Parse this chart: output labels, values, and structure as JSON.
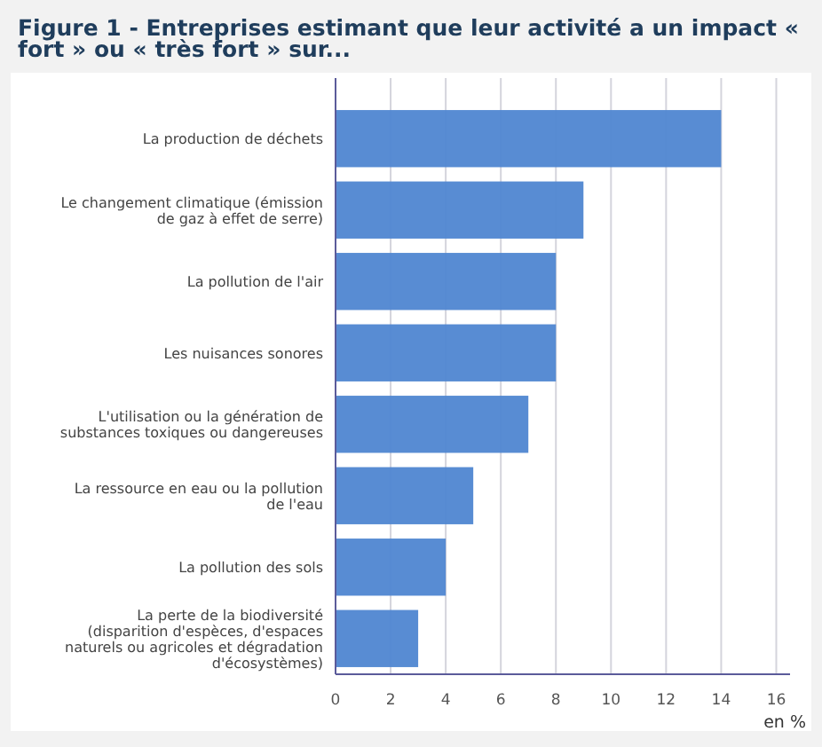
{
  "chart_data": {
    "type": "bar",
    "orientation": "horizontal",
    "title": "Figure 1 - Entreprises estimant que leur activité a un impact « fort » ou « très fort » sur...",
    "xlabel": "en %",
    "categories": [
      "La production de déchets",
      "Le changement climatique (émission de gaz à effet de serre)",
      "La pollution de l'air",
      "Les nuisances sonores",
      "L'utilisation ou la génération de substances toxiques ou dangereuses",
      "La ressource en eau ou la pollution de l'eau",
      "La pollution des sols",
      "La perte de la biodiversité (disparition d'espèces, d'espaces naturels ou agricoles et dégradation d'écosystèmes)"
    ],
    "values": [
      14,
      9,
      8,
      8,
      7,
      5,
      4,
      3
    ],
    "color": "#4f86d1",
    "xlim": [
      0,
      16.5
    ],
    "xticks": [
      0,
      2,
      4,
      6,
      8,
      10,
      12,
      14,
      16
    ],
    "grid": "x"
  }
}
